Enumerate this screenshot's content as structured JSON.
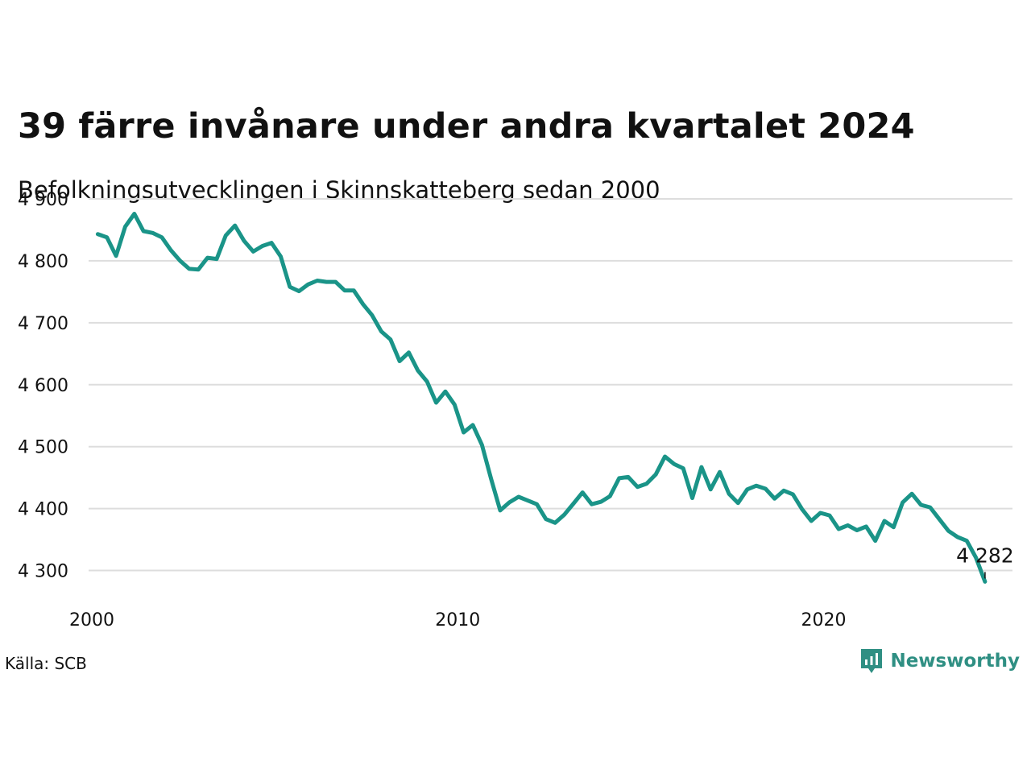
{
  "header": {
    "title": "39 färre invånare under andra kvartalet 2024",
    "subtitle": "Befolkningsutvecklingen i Skinnskatteberg sedan 2000"
  },
  "footer": {
    "source": "Källa: SCB",
    "brand_name": "Newsworthy",
    "brand_icon": "newsworthy-logo-icon"
  },
  "colors": {
    "line": "#1a9488",
    "grid": "#dddddd",
    "text": "#111111",
    "brand": "#2f8f83"
  },
  "chart_data": {
    "type": "line",
    "title": "39 färre invånare under andra kvartalet 2024",
    "subtitle": "Befolkningsutvecklingen i Skinnskatteberg sedan 2000",
    "xlabel": "",
    "ylabel": "",
    "xlim": [
      2000,
      2025.25
    ],
    "ylim": [
      4250,
      4900
    ],
    "x_ticks": [
      2000,
      2010,
      2020
    ],
    "x_tick_labels": [
      "2000",
      "2010",
      "2020"
    ],
    "y_ticks": [
      4300,
      4400,
      4500,
      4600,
      4700,
      4800,
      4900
    ],
    "y_tick_labels": [
      "4 300",
      "4 400",
      "4 500",
      "4 600",
      "4 700",
      "4 800",
      "4 900"
    ],
    "grid": true,
    "legend": "none",
    "end_label": "4 282",
    "series": [
      {
        "x": [
          2000.25,
          2000.5,
          2000.75,
          2001.0,
          2001.25,
          2001.5,
          2001.75,
          2002.0,
          2002.25,
          2002.5,
          2002.75,
          2003.0,
          2003.25,
          2003.5,
          2003.75,
          2004.0,
          2004.25,
          2004.5,
          2004.75,
          2005.0,
          2005.25,
          2005.5,
          2005.75,
          2006.0,
          2006.25,
          2006.5,
          2006.75,
          2007.0,
          2007.25,
          2007.5,
          2007.75,
          2008.0,
          2008.25,
          2008.5,
          2008.75,
          2009.0,
          2009.25,
          2009.5,
          2009.75,
          2010.0,
          2010.25,
          2010.5,
          2010.75,
          2011.0,
          2011.25,
          2011.5,
          2011.75,
          2012.0,
          2012.25,
          2012.5,
          2012.75,
          2013.0,
          2013.25,
          2013.5,
          2013.75,
          2014.0,
          2014.25,
          2014.5,
          2014.75,
          2015.0,
          2015.25,
          2015.5,
          2015.75,
          2016.0,
          2016.25,
          2016.5,
          2016.75,
          2017.0,
          2017.25,
          2017.5,
          2017.75,
          2018.0,
          2018.25,
          2018.5,
          2018.75,
          2019.0,
          2019.25,
          2019.5,
          2019.75,
          2020.0,
          2020.25,
          2020.5,
          2020.75,
          2021.0,
          2021.25,
          2021.5,
          2021.75,
          2022.0,
          2022.25,
          2022.5,
          2022.75,
          2023.0,
          2023.25,
          2023.5,
          2023.75,
          2024.0,
          2024.25,
          2024.5
        ],
        "y": [
          4843,
          4838,
          4808,
          4855,
          4876,
          4848,
          4845,
          4838,
          4817,
          4800,
          4787,
          4786,
          4805,
          4803,
          4841,
          4857,
          4832,
          4815,
          4824,
          4829,
          4807,
          4758,
          4751,
          4762,
          4768,
          4766,
          4766,
          4752,
          4752,
          4730,
          4712,
          4686,
          4673,
          4638,
          4652,
          4623,
          4605,
          4571,
          4589,
          4568,
          4523,
          4535,
          4503,
          4448,
          4397,
          4410,
          4419,
          4413,
          4407,
          4383,
          4377,
          4390,
          4408,
          4426,
          4407,
          4411,
          4420,
          4449,
          4451,
          4435,
          4440,
          4455,
          4484,
          4472,
          4465,
          4417,
          4467,
          4431,
          4459,
          4424,
          4409,
          4431,
          4437,
          4432,
          4416,
          4429,
          4423,
          4399,
          4380,
          4393,
          4389,
          4367,
          4373,
          4365,
          4371,
          4348,
          4380,
          4370,
          4410,
          4424,
          4406,
          4402,
          4383,
          4364,
          4354,
          4348,
          4321,
          4282
        ]
      }
    ]
  }
}
